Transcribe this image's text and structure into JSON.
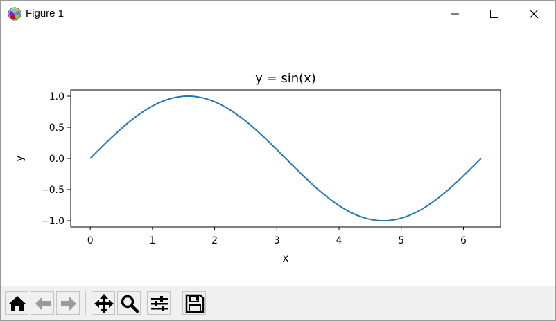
{
  "window": {
    "title": "Figure 1",
    "controls": [
      "minimize-icon",
      "maximize-icon",
      "close-icon"
    ]
  },
  "toolbar": {
    "buttons": [
      {
        "name": "home",
        "icon": "home-icon"
      },
      {
        "name": "back",
        "icon": "arrow-left-icon"
      },
      {
        "name": "forward",
        "icon": "arrow-right-icon"
      },
      {
        "name": "pan",
        "icon": "move-icon"
      },
      {
        "name": "zoom",
        "icon": "magnifier-icon"
      },
      {
        "name": "configure-subplots",
        "icon": "sliders-icon"
      },
      {
        "name": "save",
        "icon": "floppy-disk-icon"
      }
    ]
  },
  "chart_data": {
    "type": "line",
    "title": "y = sin(x)",
    "xlabel": "x",
    "ylabel": "y",
    "function": "sin(x)",
    "x_range": [
      0,
      6.283
    ],
    "xlim": [
      -0.314,
      6.597
    ],
    "ylim": [
      -1.1,
      1.1
    ],
    "xticks": [
      0,
      1,
      2,
      3,
      4,
      5,
      6
    ],
    "xtick_labels": [
      "0",
      "1",
      "2",
      "3",
      "4",
      "5",
      "6"
    ],
    "yticks": [
      1.0,
      0.5,
      0.0,
      -0.5,
      -1.0
    ],
    "ytick_labels": [
      "1.0",
      "0.5",
      "0.0",
      "−0.5",
      "−1.0"
    ],
    "line_color": "#1f77b4",
    "grid": false,
    "series": [
      {
        "x": [
          0,
          0.5236,
          1.0472,
          1.5708,
          2.0944,
          2.618,
          3.1416,
          3.6652,
          4.1888,
          4.7124,
          5.236,
          5.7596,
          6.2832
        ],
        "y": [
          0,
          0.5,
          0.866,
          1.0,
          0.866,
          0.5,
          0.0,
          -0.5,
          -0.866,
          -1.0,
          -0.866,
          -0.5,
          0.0
        ]
      }
    ]
  }
}
